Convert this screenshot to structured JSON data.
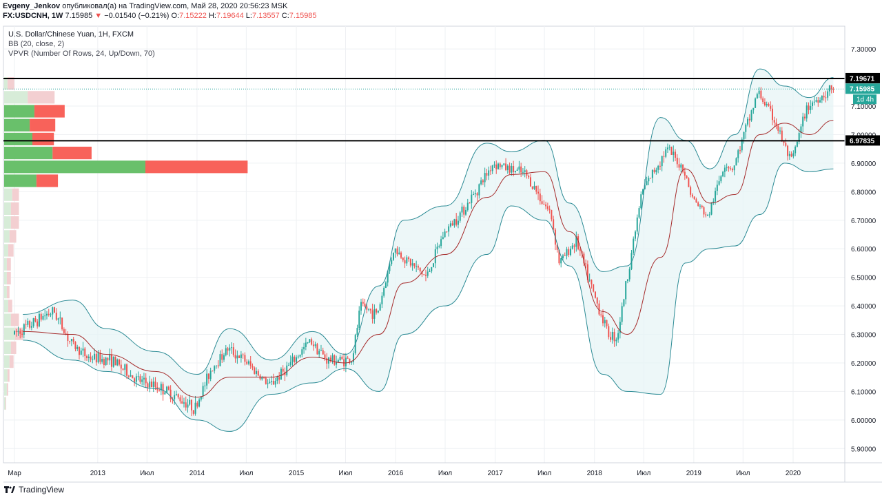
{
  "header": {
    "author": "Evgeny_Jenkov",
    "published": "опубликовал(а) на TradingView.com, Май 28, 2020 20:56:23 MSK",
    "symbol": "FX:USDCNH, 1W",
    "last": "7.15985",
    "arrow": "▼",
    "change": "−0.01540 (−0.21%)",
    "o_label": "O:",
    "o_val": "7.15222",
    "h_label": "H:",
    "h_val": "7.19644",
    "l_label": "L:",
    "l_val": "7.13557",
    "c_label": "C:",
    "c_val": "7.15985"
  },
  "legend": {
    "title": "U.S. Dollar/Chinese Yuan, 1H, FXCM",
    "bb": "BB (20, close, 2)",
    "vpvr": "VPVR (Number Of Rows, 24, Up/Down, 70)"
  },
  "footer": {
    "brand": "TradingView"
  },
  "colors": {
    "up": "#26a69a",
    "down": "#ef5350",
    "basis": "#a52a2a",
    "band": "#2a8a94",
    "band_fill": "#e6f4f5",
    "vp_up": "#69c06b",
    "vp_down": "#f8625a",
    "vp_up_faint": "#d7ecd8",
    "vp_down_faint": "#f3cfd1",
    "grid": "#eef0f3"
  },
  "chart_data": {
    "type": "candlestick",
    "y_range": [
      5.85,
      7.38
    ],
    "y_ticks": [
      5.9,
      6.0,
      6.1,
      6.2,
      6.3,
      6.4,
      6.5,
      6.6,
      6.7,
      6.8,
      6.9,
      7.0,
      7.1,
      7.2,
      7.3
    ],
    "y_tick_labels": [
      "5.90000",
      "6.00000",
      "6.10000",
      "6.20000",
      "6.30000",
      "6.40000",
      "6.50000",
      "6.60000",
      "6.70000",
      "6.80000",
      "6.90000",
      "7.00000",
      "7.10000",
      "7.20000",
      "7.30000"
    ],
    "x_labels": [
      {
        "date": "2012-03",
        "label": "Мар"
      },
      {
        "date": "2013-01",
        "label": "2013"
      },
      {
        "date": "2013-07",
        "label": "Июл"
      },
      {
        "date": "2014-01",
        "label": "2014"
      },
      {
        "date": "2014-07",
        "label": "Июл"
      },
      {
        "date": "2015-01",
        "label": "2015"
      },
      {
        "date": "2015-07",
        "label": "Июл"
      },
      {
        "date": "2016-01",
        "label": "2016"
      },
      {
        "date": "2016-07",
        "label": "Июл"
      },
      {
        "date": "2017-01",
        "label": "2017"
      },
      {
        "date": "2017-07",
        "label": "Июл"
      },
      {
        "date": "2018-01",
        "label": "2018"
      },
      {
        "date": "2018-07",
        "label": "Июл"
      },
      {
        "date": "2019-01",
        "label": "2019"
      },
      {
        "date": "2019-07",
        "label": "Июл"
      },
      {
        "date": "2020-01",
        "label": "2020"
      }
    ],
    "price_path": [
      [
        "2012-03-01",
        6.3
      ],
      [
        "2012-05-01",
        6.33
      ],
      [
        "2012-07-01",
        6.37
      ],
      [
        "2012-08-01",
        6.38
      ],
      [
        "2012-10-01",
        6.27
      ],
      [
        "2012-12-01",
        6.22
      ],
      [
        "2013-03-01",
        6.21
      ],
      [
        "2013-06-01",
        6.14
      ],
      [
        "2013-09-01",
        6.11
      ],
      [
        "2013-12-01",
        6.06
      ],
      [
        "2014-01-01",
        6.04
      ],
      [
        "2014-03-01",
        6.18
      ],
      [
        "2014-05-01",
        6.25
      ],
      [
        "2014-07-01",
        6.21
      ],
      [
        "2014-09-01",
        6.15
      ],
      [
        "2014-10-01",
        6.12
      ],
      [
        "2015-01-01",
        6.21
      ],
      [
        "2015-03-01",
        6.28
      ],
      [
        "2015-05-01",
        6.21
      ],
      [
        "2015-08-01",
        6.21
      ],
      [
        "2015-09-01",
        6.4
      ],
      [
        "2015-11-01",
        6.37
      ],
      [
        "2016-01-01",
        6.6
      ],
      [
        "2016-05-01",
        6.5
      ],
      [
        "2016-07-01",
        6.65
      ],
      [
        "2016-10-01",
        6.76
      ],
      [
        "2017-01-01",
        6.9
      ],
      [
        "2017-03-01",
        6.88
      ],
      [
        "2017-05-01",
        6.86
      ],
      [
        "2017-08-01",
        6.72
      ],
      [
        "2017-09-01",
        6.55
      ],
      [
        "2017-11-01",
        6.63
      ],
      [
        "2018-01-01",
        6.45
      ],
      [
        "2018-03-01",
        6.3
      ],
      [
        "2018-04-01",
        6.29
      ],
      [
        "2018-07-01",
        6.8
      ],
      [
        "2018-10-01",
        6.95
      ],
      [
        "2018-12-01",
        6.88
      ],
      [
        "2019-01-01",
        6.78
      ],
      [
        "2019-03-01",
        6.71
      ],
      [
        "2019-05-01",
        6.9
      ],
      [
        "2019-06-01",
        6.88
      ],
      [
        "2019-09-01",
        7.15
      ],
      [
        "2019-11-01",
        7.05
      ],
      [
        "2020-01-01",
        6.9
      ],
      [
        "2020-03-01",
        7.1
      ],
      [
        "2020-05-28",
        7.16
      ]
    ],
    "bollinger_upper": [
      [
        "2012-04-01",
        6.37
      ],
      [
        "2012-10-01",
        6.42
      ],
      [
        "2013-02-01",
        6.32
      ],
      [
        "2013-08-01",
        6.24
      ],
      [
        "2014-01-01",
        6.16
      ],
      [
        "2014-05-01",
        6.32
      ],
      [
        "2014-10-01",
        6.21
      ],
      [
        "2015-03-01",
        6.31
      ],
      [
        "2015-07-01",
        6.23
      ],
      [
        "2015-11-01",
        6.47
      ],
      [
        "2016-02-01",
        6.7
      ],
      [
        "2016-07-01",
        6.75
      ],
      [
        "2016-12-01",
        6.97
      ],
      [
        "2017-03-01",
        6.94
      ],
      [
        "2017-07-01",
        6.98
      ],
      [
        "2017-10-01",
        6.76
      ],
      [
        "2018-02-01",
        6.52
      ],
      [
        "2018-05-01",
        6.54
      ],
      [
        "2018-09-01",
        7.06
      ],
      [
        "2018-12-01",
        6.98
      ],
      [
        "2019-03-01",
        6.88
      ],
      [
        "2019-06-01",
        7.0
      ],
      [
        "2019-09-01",
        7.23
      ],
      [
        "2019-12-01",
        7.17
      ],
      [
        "2020-03-01",
        7.13
      ],
      [
        "2020-05-28",
        7.2
      ]
    ],
    "bollinger_lower": [
      [
        "2012-04-01",
        6.28
      ],
      [
        "2012-10-01",
        6.21
      ],
      [
        "2013-02-01",
        6.17
      ],
      [
        "2013-08-01",
        6.11
      ],
      [
        "2014-01-01",
        6.0
      ],
      [
        "2014-05-01",
        5.96
      ],
      [
        "2014-10-01",
        6.09
      ],
      [
        "2015-03-01",
        6.13
      ],
      [
        "2015-07-01",
        6.18
      ],
      [
        "2015-11-01",
        6.1
      ],
      [
        "2016-02-01",
        6.3
      ],
      [
        "2016-07-01",
        6.4
      ],
      [
        "2016-12-01",
        6.58
      ],
      [
        "2017-03-01",
        6.75
      ],
      [
        "2017-07-01",
        6.7
      ],
      [
        "2017-10-01",
        6.54
      ],
      [
        "2018-02-01",
        6.16
      ],
      [
        "2018-05-01",
        6.1
      ],
      [
        "2018-09-01",
        6.09
      ],
      [
        "2018-12-01",
        6.55
      ],
      [
        "2019-03-01",
        6.6
      ],
      [
        "2019-06-01",
        6.61
      ],
      [
        "2019-09-01",
        6.72
      ],
      [
        "2019-12-01",
        6.9
      ],
      [
        "2020-03-01",
        6.87
      ],
      [
        "2020-05-28",
        6.88
      ]
    ],
    "bollinger_basis": [
      [
        "2012-04-01",
        6.31
      ],
      [
        "2012-10-01",
        6.3
      ],
      [
        "2013-02-01",
        6.23
      ],
      [
        "2013-08-01",
        6.17
      ],
      [
        "2014-01-01",
        6.08
      ],
      [
        "2014-05-01",
        6.15
      ],
      [
        "2014-10-01",
        6.15
      ],
      [
        "2015-03-01",
        6.22
      ],
      [
        "2015-07-01",
        6.2
      ],
      [
        "2015-11-01",
        6.3
      ],
      [
        "2016-02-01",
        6.48
      ],
      [
        "2016-07-01",
        6.58
      ],
      [
        "2016-12-01",
        6.78
      ],
      [
        "2017-03-01",
        6.86
      ],
      [
        "2017-07-01",
        6.87
      ],
      [
        "2017-10-01",
        6.66
      ],
      [
        "2018-02-01",
        6.38
      ],
      [
        "2018-05-01",
        6.3
      ],
      [
        "2018-09-01",
        6.57
      ],
      [
        "2018-12-01",
        6.88
      ],
      [
        "2019-03-01",
        6.76
      ],
      [
        "2019-06-01",
        6.79
      ],
      [
        "2019-09-01",
        7.0
      ],
      [
        "2019-12-01",
        7.04
      ],
      [
        "2020-03-01",
        7.0
      ],
      [
        "2020-05-28",
        7.05
      ]
    ],
    "horizontal_levels": [
      {
        "price": 7.19671,
        "label": "7.19671"
      },
      {
        "price": 6.97835,
        "label": "6.97835"
      }
    ],
    "current_price": {
      "price": 7.15985,
      "label": "7.15985",
      "countdown": "1d 4h"
    },
    "volume_profile": {
      "price_rows_top_to_bottom": [
        7.2,
        7.15,
        7.1,
        7.05,
        7.0,
        6.95,
        6.9,
        6.85,
        6.8,
        6.75,
        6.7,
        6.65,
        6.6,
        6.55,
        6.5,
        6.45,
        6.4,
        6.35,
        6.3,
        6.25,
        6.2,
        6.15,
        6.1,
        6.05
      ],
      "up_volume": [
        5,
        35,
        45,
        38,
        42,
        72,
        210,
        48,
        12,
        10,
        10,
        8,
        6,
        4,
        4,
        4,
        6,
        10,
        16,
        10,
        8,
        5,
        4,
        2
      ],
      "down_volume": [
        10,
        40,
        45,
        38,
        32,
        58,
        152,
        32,
        10,
        12,
        12,
        10,
        8,
        6,
        6,
        4,
        6,
        12,
        12,
        8,
        6,
        3,
        2,
        1
      ],
      "value_area_rows": [
        2,
        3,
        4,
        5,
        6,
        7
      ]
    }
  }
}
